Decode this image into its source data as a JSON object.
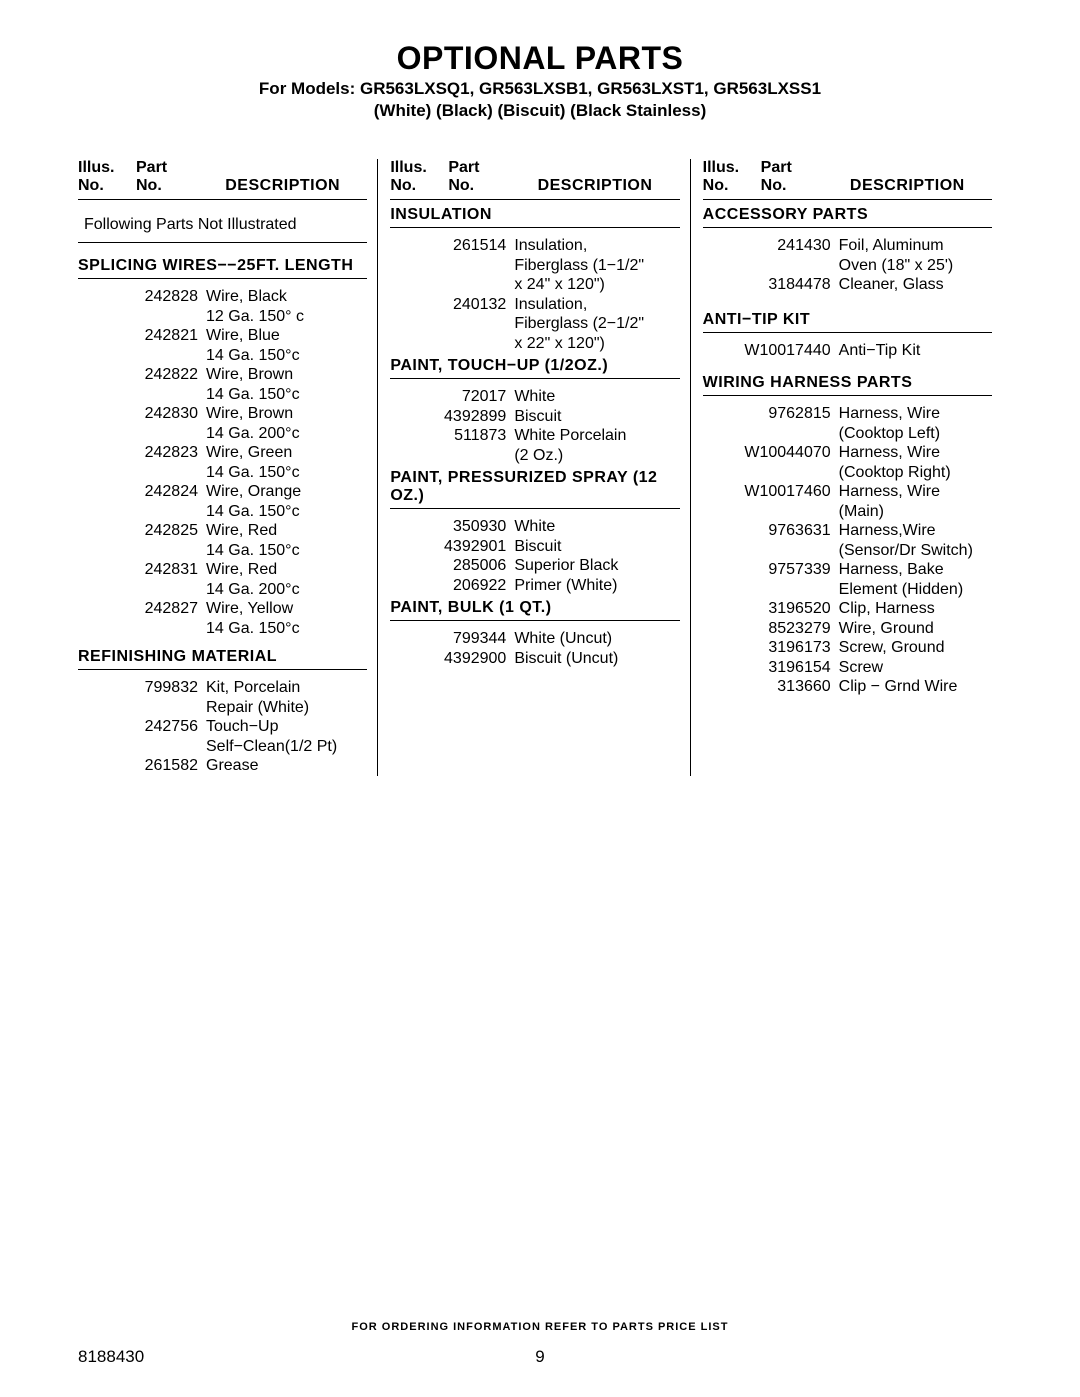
{
  "header": {
    "title": "OPTIONAL PARTS",
    "models_line": "For Models: GR563LXSQ1, GR563LXSB1, GR563LXST1, GR563LXSS1",
    "colors": "(White)              (Black)              (Biscuit)  (Black Stainless)",
    "columns_header": {
      "illus": "Illus.",
      "illus_no": "No.",
      "part": "Part",
      "part_no": "No.",
      "desc": "DESCRIPTION"
    }
  },
  "col1": {
    "note": "Following Parts Not Illustrated",
    "sect_splicing": "SPLICING WIRES−−25FT. LENGTH",
    "wires": [
      {
        "pn": "242828",
        "d": "Wire, Black",
        "d2": "12 Ga. 150° c"
      },
      {
        "pn": "242821",
        "d": "Wire, Blue",
        "d2": "14 Ga. 150°c"
      },
      {
        "pn": "242822",
        "d": "Wire, Brown",
        "d2": "14 Ga. 150°c"
      },
      {
        "pn": "242830",
        "d": "Wire, Brown",
        "d2": "14 Ga. 200°c"
      },
      {
        "pn": "242823",
        "d": "Wire, Green",
        "d2": "14 Ga. 150°c"
      },
      {
        "pn": "242824",
        "d": "Wire, Orange",
        "d2": "14 Ga. 150°c"
      },
      {
        "pn": "242825",
        "d": "Wire, Red",
        "d2": "14 Ga. 150°c"
      },
      {
        "pn": "242831",
        "d": "Wire, Red",
        "d2": "14 Ga. 200°c"
      },
      {
        "pn": "242827",
        "d": "Wire, Yellow",
        "d2": "14 Ga. 150°c"
      }
    ],
    "sect_refinish": "REFINISHING MATERIAL",
    "refinish": [
      {
        "pn": "799832",
        "d": "Kit, Porcelain",
        "d2": "Repair (White)"
      },
      {
        "pn": "242756",
        "d": "Touch−Up",
        "d2": "Self−Clean(1/2 Pt)"
      },
      {
        "pn": "261582",
        "d": "Grease",
        "d2": ""
      }
    ]
  },
  "col2": {
    "sect_insulation": "INSULATION",
    "insulation": [
      {
        "pn": "261514",
        "d": "Insulation,",
        "d2": "Fiberglass (1−1/2\"",
        "d3": "x 24\" x 120\")"
      },
      {
        "pn": "240132",
        "d": "Insulation,",
        "d2": "Fiberglass (2−1/2\"",
        "d3": "x 22\" x 120\")"
      }
    ],
    "sect_touchup": "PAINT, TOUCH−UP (1/2oz.)",
    "touchup": [
      {
        "pn": "72017",
        "d": "White"
      },
      {
        "pn": "4392899",
        "d": "Biscuit"
      },
      {
        "pn": "511873",
        "d": "White Porcelain",
        "d2": "(2 Oz.)"
      }
    ],
    "sect_spray": "PAINT, PRESSURIZED SPRAY (12 oz.)",
    "spray": [
      {
        "pn": "350930",
        "d": "White"
      },
      {
        "pn": "4392901",
        "d": "Biscuit"
      },
      {
        "pn": "285006",
        "d": "Superior Black"
      },
      {
        "pn": "206922",
        "d": "Primer (White)"
      }
    ],
    "sect_bulk": "PAINT, BULK (1 qt.)",
    "bulk": [
      {
        "pn": "799344",
        "d": "White (Uncut)"
      },
      {
        "pn": "4392900",
        "d": "Biscuit (Uncut)"
      }
    ]
  },
  "col3": {
    "sect_accessory": "ACCESSORY PARTS",
    "accessory": [
      {
        "pn": "241430",
        "d": "Foil, Aluminum",
        "d2": "Oven (18\" x 25')"
      },
      {
        "pn": "3184478",
        "d": "Cleaner, Glass"
      }
    ],
    "sect_antitip": "ANTI−TIP KIT",
    "antitip": [
      {
        "pn": "W10017440",
        "d": "Anti−Tip Kit"
      }
    ],
    "sect_wiring": "WIRING HARNESS PARTS",
    "wiring": [
      {
        "pn": "9762815",
        "d": "Harness, Wire",
        "d2": "(Cooktop Left)"
      },
      {
        "pn": "W10044070",
        "d": "Harness, Wire",
        "d2": "(Cooktop Right)"
      },
      {
        "pn": "W10017460",
        "d": "Harness, Wire",
        "d2": "(Main)"
      },
      {
        "pn": "9763631",
        "d": "Harness,Wire",
        "d2": "(Sensor/Dr Switch)"
      },
      {
        "pn": "9757339",
        "d": "Harness, Bake",
        "d2": "Element (Hidden)"
      },
      {
        "pn": "3196520",
        "d": "Clip, Harness"
      },
      {
        "pn": "8523279",
        "d": "Wire, Ground"
      },
      {
        "pn": "3196173",
        "d": "Screw, Ground"
      },
      {
        "pn": "3196154",
        "d": "Screw"
      },
      {
        "pn": "313660",
        "d": "Clip − Grnd Wire"
      }
    ]
  },
  "footer": {
    "note": "FOR ORDERING INFORMATION REFER TO PARTS PRICE LIST",
    "doc": "8188430",
    "page": "9"
  }
}
